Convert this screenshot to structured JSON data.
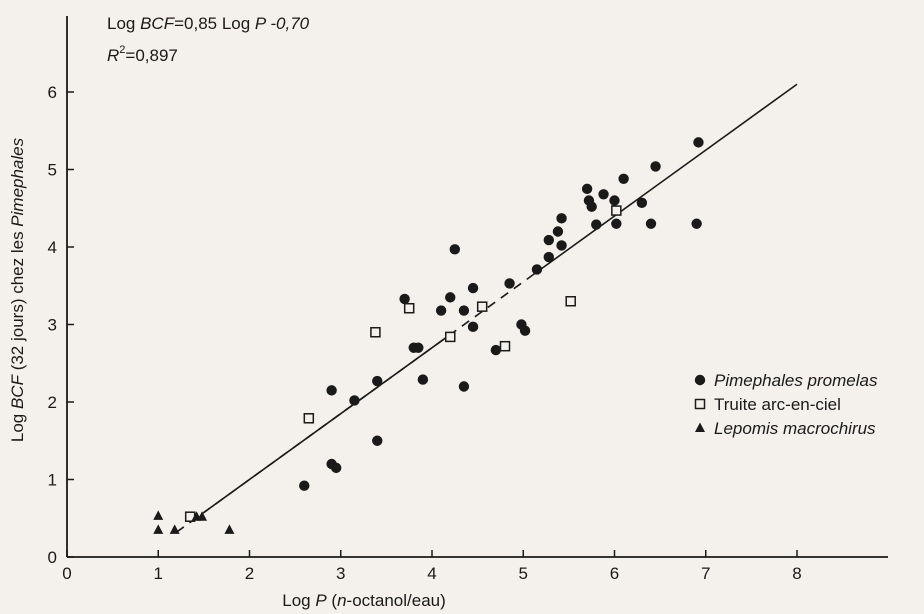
{
  "chart_data": {
    "type": "scatter",
    "equation": {
      "line1": {
        "prefix": "Log ",
        "var1": "BCF",
        "mid": "=0,85 Log ",
        "var2": "P",
        "tail": " -0,70"
      },
      "line2": {
        "var": "R",
        "sup": "2",
        "tail": "=0,897"
      }
    },
    "xlabel": {
      "prefix": "Log ",
      "var": "P",
      "open": " (",
      "italic_part": "n",
      "rest": "-octanol/eau)"
    },
    "ylabel": {
      "prefix": "Log ",
      "var": "BCF",
      "rest": " (32 jours) chez les ",
      "italic_part": "Pimephales"
    },
    "xlim": [
      0,
      9
    ],
    "ylim": [
      0,
      6.5
    ],
    "x_ticks": [
      "0",
      "1",
      "2",
      "3",
      "4",
      "5",
      "6",
      "7",
      "8"
    ],
    "y_ticks": [
      "0",
      "1",
      "2",
      "3",
      "4",
      "5",
      "6"
    ],
    "fit_line": {
      "slope": 0.85,
      "intercept": -0.7,
      "solid_from": [
        [
          1.5,
          4.2
        ],
        [
          5.1,
          8.0
        ]
      ],
      "dashed_from": [
        1.2,
        5.1
      ]
    },
    "series": [
      {
        "name": "Pimephales promelas",
        "marker": "circle",
        "points": [
          [
            2.6,
            0.92
          ],
          [
            2.9,
            1.2
          ],
          [
            2.95,
            1.15
          ],
          [
            2.9,
            2.15
          ],
          [
            3.15,
            2.02
          ],
          [
            3.4,
            2.27
          ],
          [
            3.4,
            1.5
          ],
          [
            3.7,
            3.33
          ],
          [
            3.8,
            2.7
          ],
          [
            3.85,
            2.7
          ],
          [
            3.9,
            2.29
          ],
          [
            4.1,
            3.18
          ],
          [
            4.2,
            3.35
          ],
          [
            4.25,
            3.97
          ],
          [
            4.35,
            3.18
          ],
          [
            4.35,
            2.2
          ],
          [
            4.45,
            3.47
          ],
          [
            4.45,
            2.97
          ],
          [
            4.7,
            2.67
          ],
          [
            4.85,
            3.53
          ],
          [
            4.98,
            3.0
          ],
          [
            5.02,
            2.92
          ],
          [
            5.15,
            3.71
          ],
          [
            5.28,
            3.87
          ],
          [
            5.28,
            4.09
          ],
          [
            5.38,
            4.2
          ],
          [
            5.42,
            4.37
          ],
          [
            5.42,
            4.02
          ],
          [
            5.7,
            4.75
          ],
          [
            5.72,
            4.6
          ],
          [
            5.75,
            4.52
          ],
          [
            5.8,
            4.29
          ],
          [
            5.88,
            4.68
          ],
          [
            6.0,
            4.6
          ],
          [
            6.02,
            4.3
          ],
          [
            6.1,
            4.88
          ],
          [
            6.3,
            4.57
          ],
          [
            6.4,
            4.3
          ],
          [
            6.45,
            5.04
          ],
          [
            6.9,
            4.3
          ],
          [
            6.92,
            5.35
          ]
        ]
      },
      {
        "name": "Truite arc-en-ciel",
        "marker": "square",
        "points": [
          [
            1.35,
            0.52
          ],
          [
            2.65,
            1.79
          ],
          [
            3.38,
            2.9
          ],
          [
            3.75,
            3.21
          ],
          [
            4.2,
            2.84
          ],
          [
            4.55,
            3.23
          ],
          [
            4.8,
            2.72
          ],
          [
            5.52,
            3.3
          ],
          [
            6.02,
            4.47
          ]
        ]
      },
      {
        "name": "Lepomis macrochirus",
        "marker": "triangle",
        "points": [
          [
            1.0,
            0.53
          ],
          [
            1.0,
            0.35
          ],
          [
            1.18,
            0.35
          ],
          [
            1.42,
            0.52
          ],
          [
            1.48,
            0.52
          ],
          [
            1.78,
            0.35
          ]
        ]
      }
    ],
    "legend": [
      {
        "marker": "circle",
        "label": "Pimephales promelas",
        "italic": true
      },
      {
        "marker": "square",
        "label": "Truite arc-en-ciel",
        "italic": false
      },
      {
        "marker": "triangle",
        "label": "Lepomis macrochirus",
        "italic": true
      }
    ],
    "legend_position": "right",
    "grid": false
  }
}
